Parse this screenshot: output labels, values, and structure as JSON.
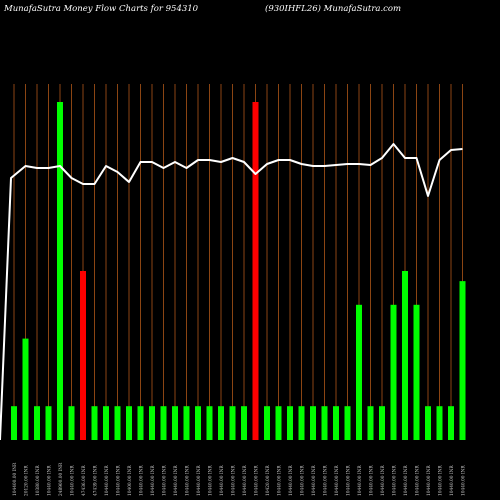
{
  "header": {
    "title_left": "MunafaSutra  Money Flow  Charts for 954310",
    "title_right": "(930IHFL26) MunafaSutra.com"
  },
  "colors": {
    "background": "#000000",
    "grid": "#8B4513",
    "up_bar": "#00ff00",
    "down_bar": "#ff0000",
    "line": "#ffffff",
    "label": "#cfcfcf"
  },
  "chart_data": {
    "type": "bar",
    "title": "MunafaSutra  Money Flow  Charts for 954310",
    "subtitle": "(930IHFL26) MunafaSutra.com",
    "ylim": [
      0,
      100
    ],
    "grid": "vertical",
    "bar_values": [
      10,
      30,
      10,
      10,
      100,
      10,
      50,
      10,
      10,
      10,
      10,
      10,
      10,
      10,
      10,
      10,
      10,
      10,
      10,
      10,
      10,
      100,
      10,
      10,
      10,
      10,
      10,
      10,
      10,
      10,
      40,
      10,
      10,
      40,
      50,
      40,
      10,
      10,
      10,
      47
    ],
    "bar_colors": [
      "green",
      "green",
      "green",
      "green",
      "green",
      "green",
      "red",
      "green",
      "green",
      "green",
      "green",
      "green",
      "green",
      "green",
      "green",
      "green",
      "green",
      "green",
      "green",
      "green",
      "green",
      "red",
      "green",
      "green",
      "green",
      "green",
      "green",
      "green",
      "green",
      "green",
      "green",
      "green",
      "green",
      "green",
      "green",
      "green",
      "green",
      "green",
      "green",
      "green"
    ],
    "line_values": [
      61,
      67,
      66,
      66,
      67,
      61,
      58,
      58,
      67,
      64,
      59,
      69,
      69,
      66,
      69,
      66,
      70,
      70,
      69,
      71,
      69,
      63,
      68,
      70,
      70,
      68,
      67,
      67,
      67.5,
      68,
      68,
      67.5,
      71,
      78,
      71,
      71,
      52,
      70,
      75,
      75.5
    ],
    "x_labels": [
      "104400.00 INR",
      "20120.00 INR",
      "10380.00 INR",
      "10440.00 INR",
      "248900.00 INR",
      "10440.00 INR",
      "47436.00 INR",
      "47439.00 INR",
      "10440.00 INR",
      "10440.00 INR",
      "10400.00 INR",
      "10440.00 INR",
      "10440.00 INR",
      "10440.00 INR",
      "10440.00 INR",
      "10440.00 INR",
      "10440.00 INR",
      "10440.00 INR",
      "10440.00 INR",
      "10440.00 INR",
      "10440.00 INR",
      "10440.00 INR",
      "10420.00 INR",
      "10440.00 INR",
      "10440.00 INR",
      "10440.00 INR",
      "10440.00 INR",
      "10440.00 INR",
      "10440.00 INR",
      "10440.00 INR",
      "10440.00 INR",
      "10440.00 INR",
      "10440.00 INR",
      "10440.00 INR",
      "10440.00 INR",
      "10440.00 INR",
      "10440.00 INR",
      "10440.00 INR",
      "10440.00 INR",
      "10440.00 INR"
    ]
  }
}
